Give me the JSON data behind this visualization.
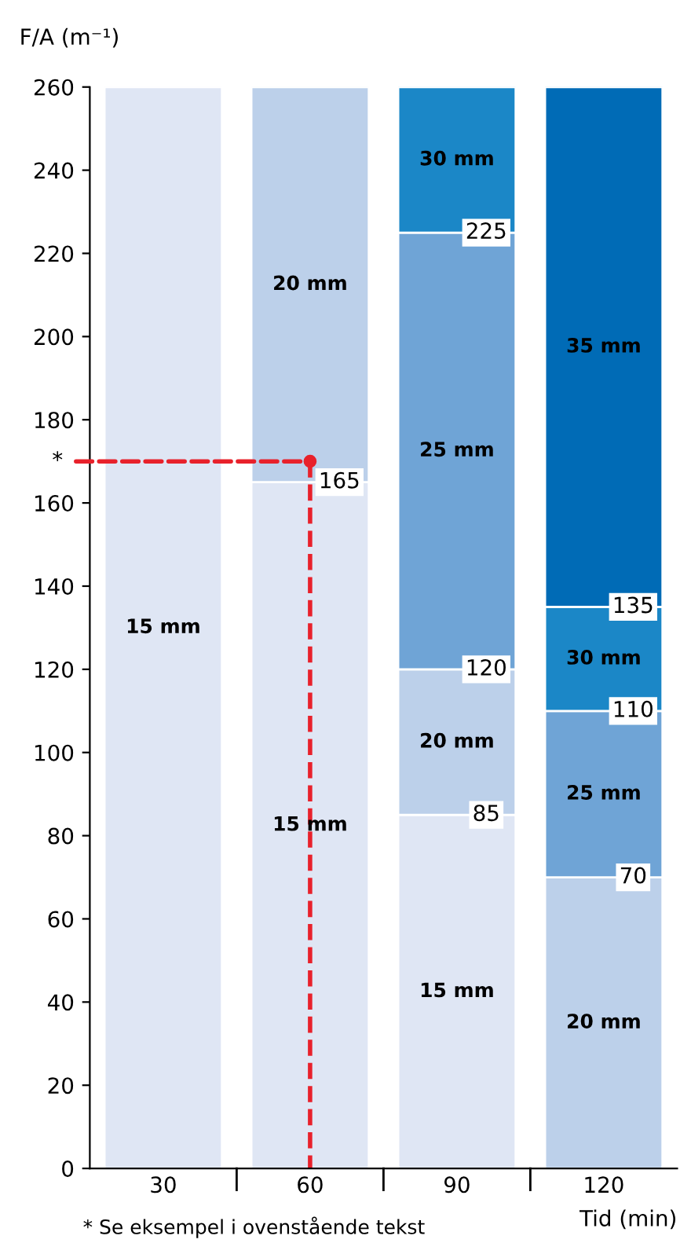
{
  "chart_data": {
    "type": "bar",
    "stacked": true,
    "xlabel": "Tid (min)",
    "ylabel": "F/A (m⁻¹)",
    "categories": [
      "30",
      "60",
      "90",
      "120"
    ],
    "series": [
      {
        "name": "15 mm",
        "color": "#dfe6f4",
        "values": [
          260,
          165,
          85,
          null
        ]
      },
      {
        "name": "20 mm",
        "color": "#bcd0ea",
        "values": [
          null,
          95,
          35,
          70
        ]
      },
      {
        "name": "25 mm",
        "color": "#6fa4d6",
        "values": [
          null,
          null,
          105,
          40
        ]
      },
      {
        "name": "30 mm",
        "color": "#1b87c7",
        "values": [
          null,
          null,
          35,
          25
        ]
      },
      {
        "name": "35 mm",
        "color": "#006bb6",
        "values": [
          null,
          null,
          null,
          125
        ]
      }
    ],
    "ylim": [
      0,
      260
    ],
    "yticks": [
      0,
      20,
      40,
      60,
      80,
      100,
      120,
      140,
      160,
      180,
      200,
      220,
      240,
      260
    ],
    "grid": false,
    "legend": false,
    "annotations": [
      {
        "text": "165",
        "x": "60",
        "y": 165
      },
      {
        "text": "85",
        "x": "90",
        "y": 85
      },
      {
        "text": "120",
        "x": "90",
        "y": 120
      },
      {
        "text": "225",
        "x": "90",
        "y": 225
      },
      {
        "text": "70",
        "x": "120",
        "y": 70
      },
      {
        "text": "110",
        "x": "120",
        "y": 110
      },
      {
        "text": "135",
        "x": "120",
        "y": 135
      },
      {
        "text": "*",
        "x": "60",
        "y": 170
      },
      "* Se eksempel i ovenstående tekst"
    ]
  }
}
